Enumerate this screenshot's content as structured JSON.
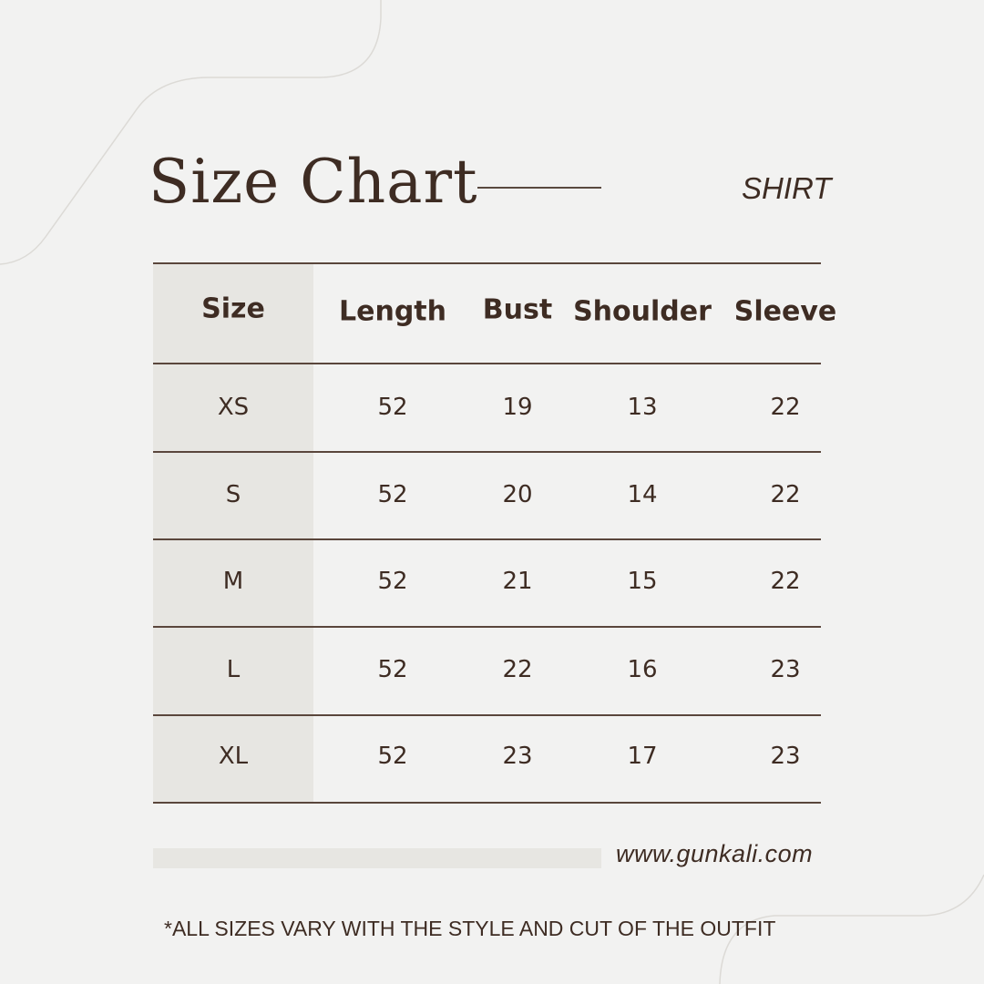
{
  "header": {
    "title": "Size Chart",
    "subtitle": "SHIRT"
  },
  "table": {
    "columns": [
      "Size",
      "Length",
      "Bust",
      "Shoulder",
      "Sleeve"
    ],
    "rows": [
      [
        "XS",
        "52",
        "19",
        "13",
        "22"
      ],
      [
        "S",
        "52",
        "20",
        "14",
        "22"
      ],
      [
        "M",
        "52",
        "21",
        "15",
        "22"
      ],
      [
        "L",
        "52",
        "22",
        "16",
        "23"
      ],
      [
        "XL",
        "52",
        "23",
        "17",
        "23"
      ]
    ]
  },
  "footer": {
    "website": "www.gunkali.com",
    "note": "*ALL SIZES VARY WITH THE STYLE AND CUT OF THE OUTFIT"
  },
  "colors": {
    "background": "#f2f2f1",
    "text": "#3e2c23",
    "size_column": "#e7e6e2"
  }
}
